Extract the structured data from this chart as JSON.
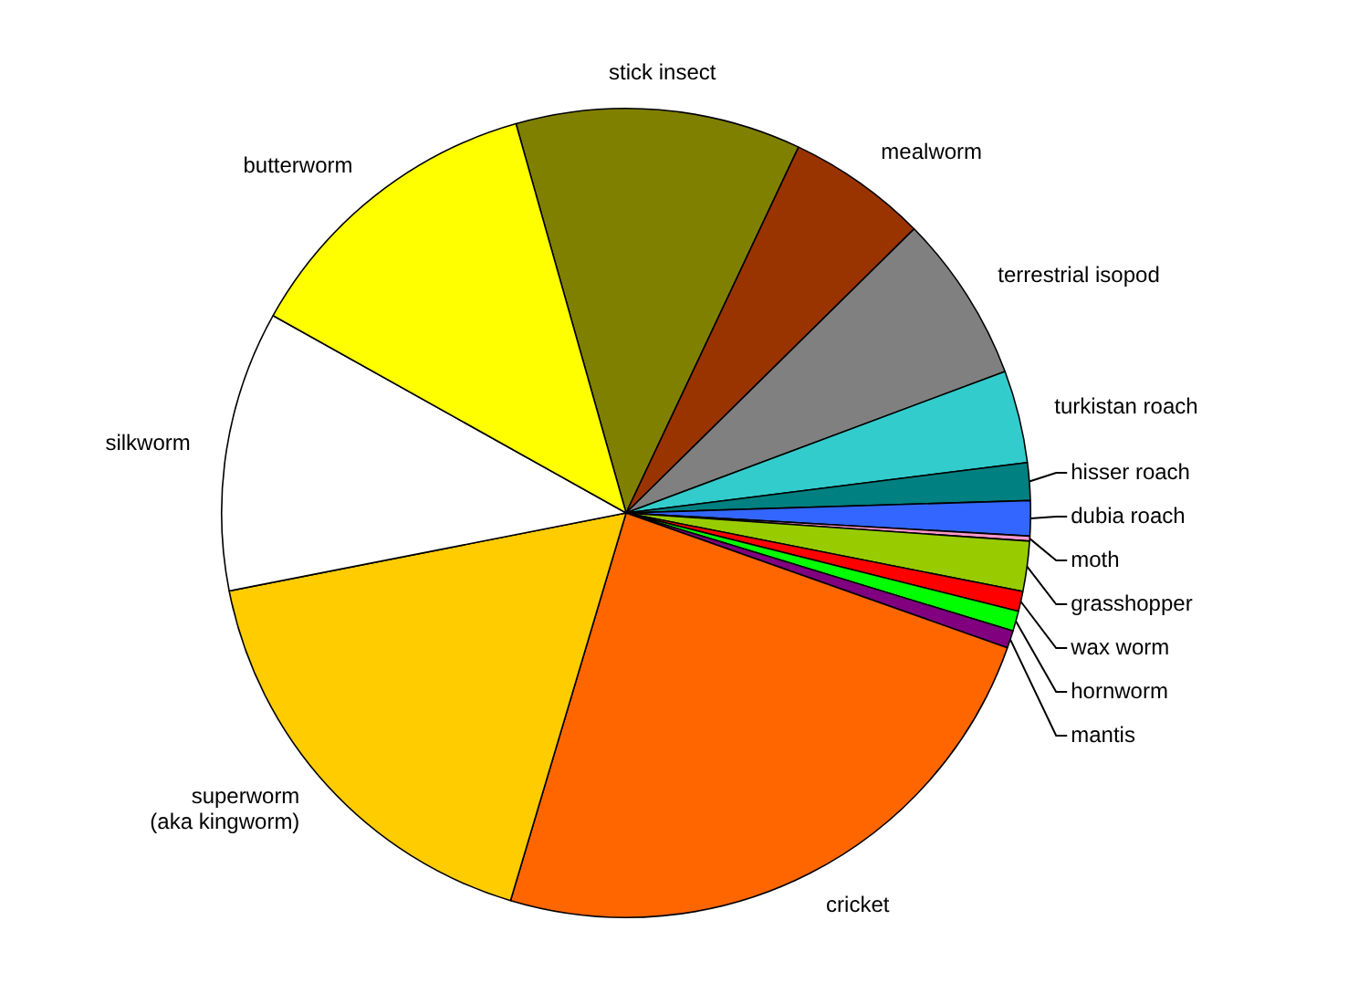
{
  "chart_data": {
    "type": "pie",
    "categories": [
      "stick insect",
      "mealworm",
      "terrestrial isopod",
      "turkistan roach",
      "hisser roach",
      "dubia roach",
      "moth",
      "grasshopper",
      "wax worm",
      "hornworm",
      "mantis",
      "cricket",
      "superworm\n(aka kingworm)",
      "silkworm",
      "butterworm"
    ],
    "values": [
      11.4,
      5.6,
      6.7,
      3.7,
      1.5,
      1.4,
      0.2,
      2.0,
      0.8,
      0.8,
      0.7,
      24.2,
      17.3,
      11.2,
      12.5
    ],
    "colors": [
      "#808000",
      "#993300",
      "#808080",
      "#33cccc",
      "#008080",
      "#3366ff",
      "#ff99cc",
      "#99cc00",
      "#ff0000",
      "#00ff00",
      "#800080",
      "#ff6600",
      "#ffcc00",
      "#ffffff",
      "#ffff00"
    ],
    "legend": false
  }
}
